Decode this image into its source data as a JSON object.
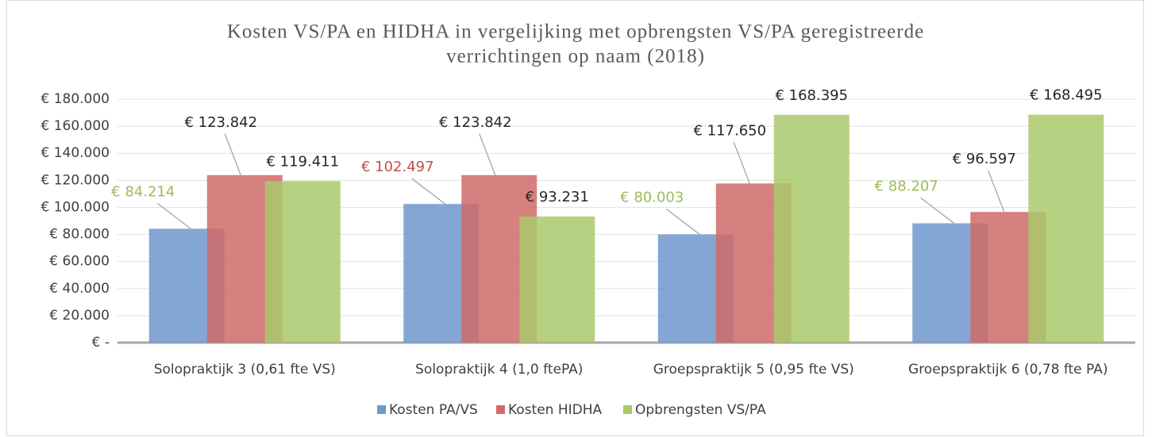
{
  "chart_data": {
    "type": "bar",
    "title": [
      "Kosten VS/PA en HIDHA in vergelijking met opbrengsten VS/PA geregistreerde",
      "verrichtingen op naam (2018)"
    ],
    "categories": [
      "Solopraktijk 3 (0,61 fte VS)",
      "Solopraktijk 4 (1,0 ftePA)",
      "Groepspraktijk 5 (0,95 fte VS)",
      "Groepspraktijk 6 (0,78 fte PA)"
    ],
    "series": [
      {
        "name": "Kosten PA/VS",
        "color": "#6f97cc",
        "values": [
          84214,
          102497,
          80003,
          88207
        ],
        "value_labels": [
          "€ 84.214",
          "€ 102.497",
          "€ 80.003",
          "€ 88.207"
        ],
        "label_colors": [
          "#9bbb59",
          "#c0504d",
          "#9bbb59",
          "#9bbb59"
        ]
      },
      {
        "name": "Kosten HIDHA",
        "color": "#cf6b69",
        "values": [
          123842,
          123842,
          117650,
          96597
        ],
        "value_labels": [
          "€ 123.842",
          "€ 123.842",
          "€ 117.650",
          "€ 96.597"
        ],
        "label_colors": [
          "#262626",
          "#262626",
          "#262626",
          "#262626"
        ]
      },
      {
        "name": "Opbrengsten VS/PA",
        "color": "#a9c96b",
        "values": [
          119411,
          93231,
          168395,
          168495
        ],
        "value_labels": [
          "€ 119.411",
          "€ 93.231",
          "€ 168.395",
          "€ 168.495"
        ],
        "label_colors": [
          "#262626",
          "#262626",
          "#262626",
          "#262626"
        ]
      }
    ],
    "ylim": [
      0,
      180000
    ],
    "yticks": [
      {
        "value": 0,
        "label": "€ -"
      },
      {
        "value": 20000,
        "label": "€ 20.000"
      },
      {
        "value": 40000,
        "label": "€ 40.000"
      },
      {
        "value": 60000,
        "label": "€ 60.000"
      },
      {
        "value": 80000,
        "label": "€ 80.000"
      },
      {
        "value": 100000,
        "label": "€ 100.000"
      },
      {
        "value": 120000,
        "label": "€ 120.000"
      },
      {
        "value": 140000,
        "label": "€ 140.000"
      },
      {
        "value": 160000,
        "label": "€ 160.000"
      },
      {
        "value": 180000,
        "label": "€ 180.000"
      }
    ],
    "grid": true,
    "legend": "bottom"
  }
}
